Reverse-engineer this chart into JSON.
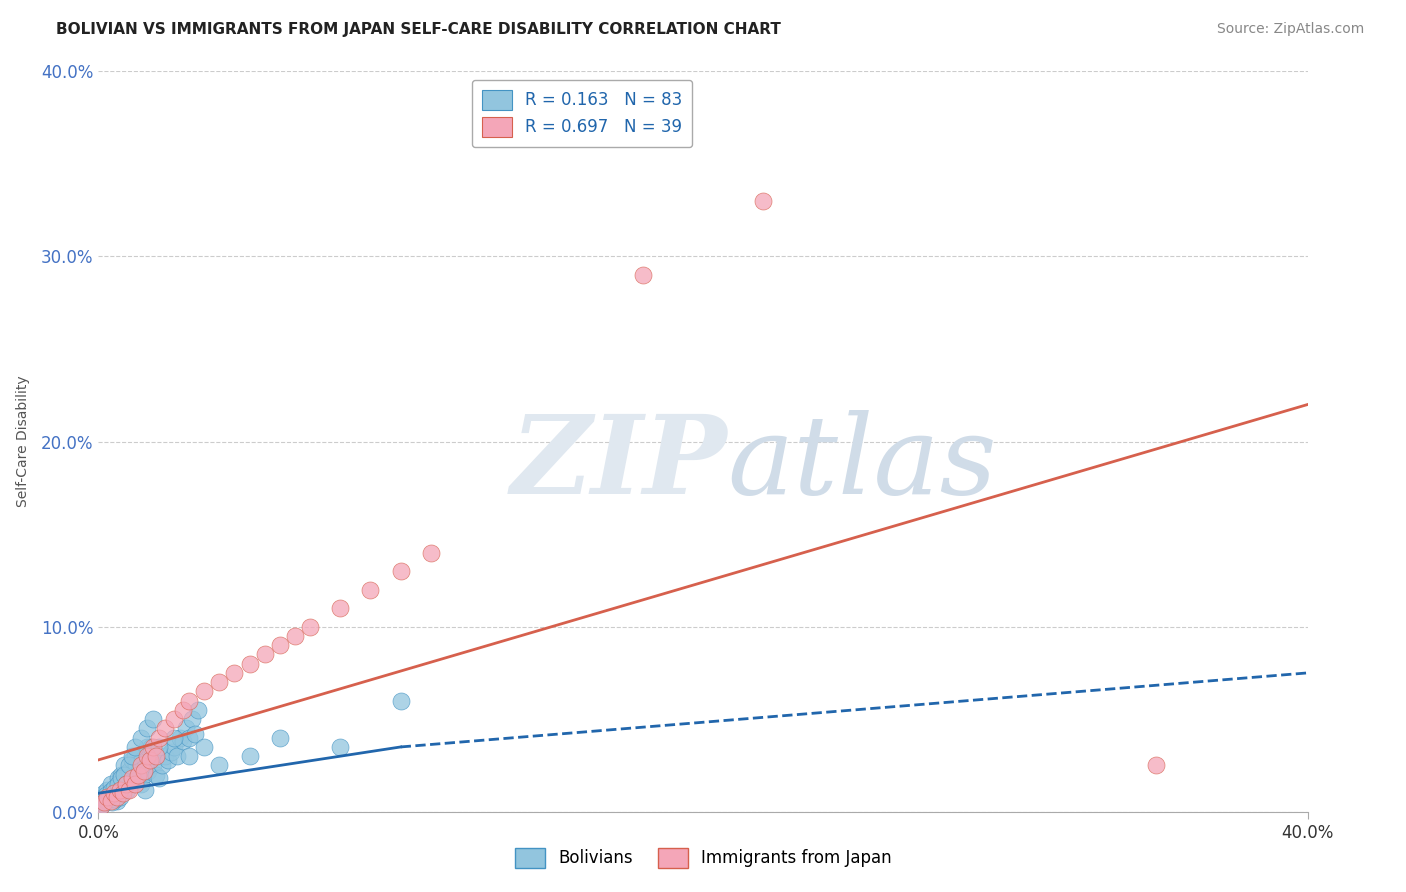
{
  "title": "BOLIVIAN VS IMMIGRANTS FROM JAPAN SELF-CARE DISABILITY CORRELATION CHART",
  "source": "Source: ZipAtlas.com",
  "ylabel": "Self-Care Disability",
  "ytick_labels": [
    "0.0%",
    "10.0%",
    "20.0%",
    "30.0%",
    "40.0%"
  ],
  "ytick_values": [
    0,
    10,
    20,
    30,
    40
  ],
  "xlim": [
    0,
    40
  ],
  "ylim": [
    0,
    40
  ],
  "bolivians_R": 0.163,
  "bolivians_N": 83,
  "japan_R": 0.697,
  "japan_N": 39,
  "blue_scatter_color": "#92c5de",
  "blue_edge_color": "#4393c3",
  "pink_scatter_color": "#f4a6b8",
  "pink_edge_color": "#d6604d",
  "blue_line_color": "#2166ac",
  "pink_line_color": "#d6604d",
  "legend_label_1": "Bolivians",
  "legend_label_2": "Immigrants from Japan",
  "bolivians_x": [
    0.1,
    0.15,
    0.2,
    0.25,
    0.3,
    0.35,
    0.4,
    0.45,
    0.5,
    0.55,
    0.6,
    0.65,
    0.7,
    0.75,
    0.8,
    0.85,
    0.9,
    0.95,
    1.0,
    1.05,
    1.1,
    1.15,
    1.2,
    1.25,
    1.3,
    1.35,
    1.4,
    1.45,
    1.5,
    1.55,
    1.6,
    1.65,
    1.7,
    1.75,
    1.8,
    1.9,
    2.0,
    2.1,
    2.2,
    2.3,
    2.4,
    2.5,
    2.6,
    2.7,
    2.8,
    2.9,
    3.0,
    3.1,
    3.2,
    3.3,
    0.05,
    0.1,
    0.15,
    0.2,
    0.25,
    0.3,
    0.35,
    0.4,
    0.45,
    0.5,
    0.55,
    0.6,
    0.65,
    0.7,
    0.75,
    0.8,
    0.85,
    0.9,
    1.0,
    1.1,
    1.2,
    1.4,
    1.6,
    1.8,
    2.0,
    2.5,
    3.0,
    3.5,
    4.0,
    5.0,
    6.0,
    8.0,
    10.0
  ],
  "bolivians_y": [
    0.5,
    0.8,
    1.0,
    0.6,
    1.2,
    0.9,
    1.5,
    1.0,
    0.8,
    1.2,
    0.6,
    1.8,
    1.0,
    2.0,
    1.5,
    2.5,
    1.8,
    1.2,
    2.2,
    1.6,
    2.8,
    2.0,
    3.0,
    2.5,
    1.8,
    2.2,
    1.5,
    2.8,
    2.0,
    1.2,
    3.5,
    2.2,
    2.8,
    3.5,
    2.5,
    2.0,
    1.8,
    2.5,
    3.0,
    2.8,
    3.2,
    3.5,
    3.0,
    4.0,
    3.8,
    4.5,
    4.0,
    5.0,
    4.2,
    5.5,
    0.3,
    0.5,
    0.4,
    0.7,
    0.9,
    0.6,
    0.8,
    1.1,
    0.5,
    1.3,
    0.7,
    1.0,
    1.5,
    0.8,
    1.8,
    1.2,
    2.0,
    1.5,
    2.5,
    3.0,
    3.5,
    4.0,
    4.5,
    5.0,
    3.5,
    4.0,
    3.0,
    3.5,
    2.5,
    3.0,
    4.0,
    3.5,
    6.0
  ],
  "japan_x": [
    0.1,
    0.2,
    0.3,
    0.4,
    0.5,
    0.6,
    0.7,
    0.8,
    0.9,
    1.0,
    1.1,
    1.2,
    1.3,
    1.4,
    1.5,
    1.6,
    1.7,
    1.8,
    1.9,
    2.0,
    2.2,
    2.5,
    2.8,
    3.0,
    3.5,
    4.0,
    4.5,
    5.0,
    5.5,
    6.0,
    7.0,
    8.0,
    9.0,
    10.0,
    11.0,
    18.0,
    22.0,
    35.0,
    6.5
  ],
  "japan_y": [
    0.3,
    0.5,
    0.8,
    0.6,
    1.0,
    0.8,
    1.2,
    1.0,
    1.5,
    1.2,
    1.8,
    1.5,
    2.0,
    2.5,
    2.2,
    3.0,
    2.8,
    3.5,
    3.0,
    4.0,
    4.5,
    5.0,
    5.5,
    6.0,
    6.5,
    7.0,
    7.5,
    8.0,
    8.5,
    9.0,
    10.0,
    11.0,
    12.0,
    13.0,
    14.0,
    29.0,
    33.0,
    2.5,
    9.5
  ],
  "japan_line_x_start": 0,
  "japan_line_x_end": 40,
  "japan_line_y_start": 2.8,
  "japan_line_y_end": 22.0,
  "bolivians_line_solid_x_start": 0,
  "bolivians_line_solid_x_end": 10,
  "bolivians_line_dash_x_start": 10,
  "bolivians_line_dash_x_end": 40,
  "bolivians_line_y_at_0": 1.0,
  "bolivians_line_y_at_10": 3.5,
  "bolivians_line_y_at_40": 7.5
}
